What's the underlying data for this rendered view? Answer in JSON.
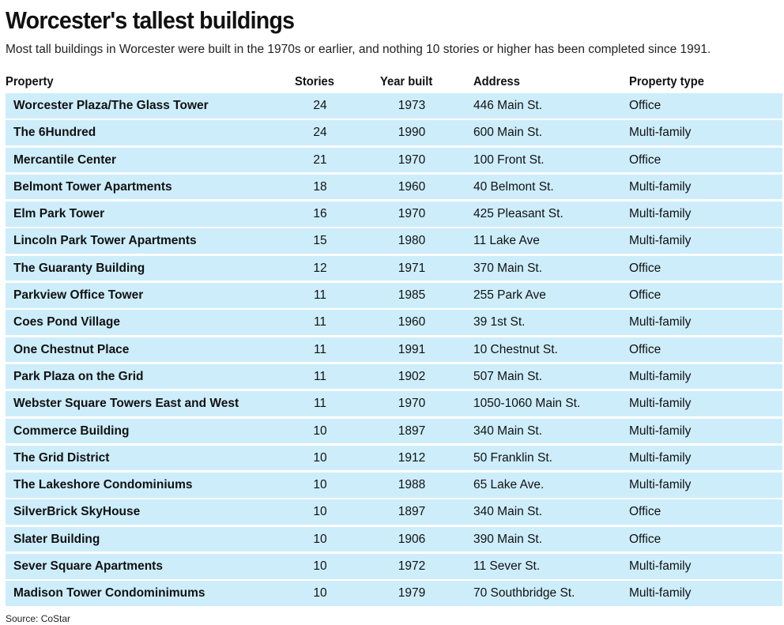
{
  "title": "Worcester's tallest buildings",
  "subtitle": "Most tall buildings in Worcester were built in the 1970s or earlier, and nothing 10 stories or higher has been completed since 1991.",
  "source": "Source: CoStar",
  "colors": {
    "row_bg": "#cdedfb"
  },
  "chart_data": {
    "type": "table",
    "columns": [
      "Property",
      "Stories",
      "Year built",
      "Address",
      "Property type"
    ],
    "rows": [
      [
        "Worcester Plaza/The Glass Tower",
        "24",
        "1973",
        "446 Main St.",
        "Office"
      ],
      [
        "The 6Hundred",
        "24",
        "1990",
        "600 Main St.",
        "Multi-family"
      ],
      [
        "Mercantile Center",
        "21",
        "1970",
        "100 Front St.",
        "Office"
      ],
      [
        "Belmont Tower Apartments",
        "18",
        "1960",
        "40 Belmont St.",
        "Multi-family"
      ],
      [
        "Elm Park Tower",
        "16",
        "1970",
        "425 Pleasant St.",
        "Multi-family"
      ],
      [
        "Lincoln Park Tower Apartments",
        "15",
        "1980",
        "11 Lake Ave",
        "Multi-family"
      ],
      [
        "The Guaranty Building",
        "12",
        "1971",
        "370 Main St.",
        "Office"
      ],
      [
        "Parkview Office Tower",
        "11",
        "1985",
        "255 Park Ave",
        "Office"
      ],
      [
        "Coes Pond Village",
        "11",
        "1960",
        "39 1st St.",
        "Multi-family"
      ],
      [
        "One Chestnut Place",
        "11",
        "1991",
        "10 Chestnut St.",
        "Office"
      ],
      [
        "Park Plaza on the Grid",
        "11",
        "1902",
        "507 Main St.",
        "Multi-family"
      ],
      [
        "Webster Square Towers East and West",
        "11",
        "1970",
        "1050-1060 Main St.",
        "Multi-family"
      ],
      [
        "Commerce Building",
        "10",
        "1897",
        "340 Main St.",
        "Multi-family"
      ],
      [
        "The Grid District",
        "10",
        "1912",
        "50 Franklin St.",
        "Multi-family"
      ],
      [
        "The Lakeshore Condominiums",
        "10",
        "1988",
        "65 Lake Ave.",
        "Multi-family"
      ],
      [
        "SilverBrick SkyHouse",
        "10",
        "1897",
        "340 Main St.",
        "Office"
      ],
      [
        "Slater Building",
        "10",
        "1906",
        "390 Main St.",
        "Office"
      ],
      [
        "Sever Square Apartments",
        "10",
        "1972",
        "11 Sever St.",
        "Multi-family"
      ],
      [
        "Madison Tower Condominimums",
        "10",
        "1979",
        "70 Southbridge St.",
        "Multi-family"
      ]
    ]
  }
}
